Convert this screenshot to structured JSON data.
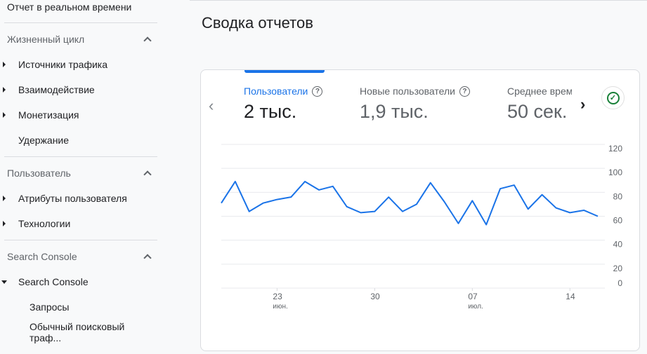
{
  "sidebar": {
    "realtime": "Отчет в реальном времени",
    "sections": [
      {
        "label": "Жизненный цикл",
        "items": [
          {
            "label": "Источники трафика",
            "expandable": true
          },
          {
            "label": "Взаимодействие",
            "expandable": true
          },
          {
            "label": "Монетизация",
            "expandable": true
          },
          {
            "label": "Удержание",
            "expandable": false
          }
        ]
      },
      {
        "label": "Пользователь",
        "items": [
          {
            "label": "Атрибуты пользователя",
            "expandable": true
          },
          {
            "label": "Технологии",
            "expandable": true
          }
        ]
      },
      {
        "label": "Search Console",
        "items": [
          {
            "label": "Search Console",
            "expanded": true
          },
          {
            "label": "Запросы"
          },
          {
            "label": "Обычный поисковый траф..."
          }
        ]
      }
    ]
  },
  "main": {
    "title": "Сводка отчетов",
    "metrics": [
      {
        "label": "Пользователи",
        "value": "2 тыс.",
        "active": true
      },
      {
        "label": "Новые пользователи",
        "value": "1,9 тыс."
      },
      {
        "label": "Среднее врем",
        "value": "50 сек."
      }
    ],
    "prev_icon": "chevron-left-icon",
    "next_icon": "chevron-right-icon",
    "status_icon": "check-circle-icon",
    "accent": "#1a73e8"
  },
  "chart_data": {
    "type": "line",
    "x": [
      "06-19",
      "06-20",
      "06-21",
      "06-22",
      "06-23",
      "06-24",
      "06-25",
      "06-26",
      "06-27",
      "06-28",
      "06-29",
      "06-30",
      "07-01",
      "07-02",
      "07-03",
      "07-04",
      "07-05",
      "07-06",
      "07-07",
      "07-08",
      "07-09",
      "07-10",
      "07-11",
      "07-12",
      "07-13",
      "07-14",
      "07-15",
      "07-16"
    ],
    "series": [
      {
        "values": [
          71,
          89,
          64,
          71,
          74,
          76,
          89,
          82,
          85,
          68,
          63,
          64,
          76,
          64,
          70,
          88,
          72,
          54,
          73,
          53,
          83,
          86,
          66,
          78,
          67,
          63,
          65,
          60
        ],
        "color": "#1a73e8"
      }
    ],
    "x_ticks": [
      {
        "index": 4,
        "label": "23",
        "sub": "июн."
      },
      {
        "index": 11,
        "label": "30",
        "sub": ""
      },
      {
        "index": 18,
        "label": "07",
        "sub": "июл."
      },
      {
        "index": 25,
        "label": "14",
        "sub": ""
      }
    ],
    "y_ticks": [
      "120",
      "100",
      "80",
      "60",
      "40",
      "20",
      "0"
    ],
    "ylim": [
      0,
      120
    ],
    "grid": true,
    "y_axis_side": "right"
  }
}
